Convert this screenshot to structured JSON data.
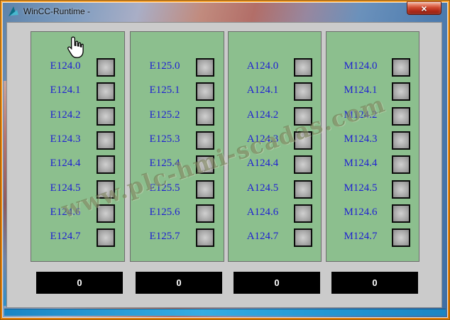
{
  "window": {
    "title": "WinCC-Runtime -",
    "close_icon": "×"
  },
  "watermark": {
    "text": "www.plc-hmi-scadas.com"
  },
  "panels": [
    {
      "name": "E124",
      "labels": [
        "E124.0",
        "E124.1",
        "E124.2",
        "E124.3",
        "E124.4",
        "E124.5",
        "E124.6",
        "E124.7"
      ],
      "counter": "0"
    },
    {
      "name": "E125",
      "labels": [
        "E125.0",
        "E125.1",
        "E125.2",
        "E125.3",
        "E125.4",
        "E125.5",
        "E125.6",
        "E125.7"
      ],
      "counter": "0"
    },
    {
      "name": "A124",
      "labels": [
        "A124.0",
        "A124.1",
        "A124.2",
        "A124.3",
        "A124.4",
        "A124.5",
        "A124.6",
        "A124.7"
      ],
      "counter": "0"
    },
    {
      "name": "M124",
      "labels": [
        "M124.0",
        "M124.1",
        "M124.2",
        "M124.3",
        "M124.4",
        "M124.5",
        "M124.6",
        "M124.7"
      ],
      "counter": "0"
    }
  ],
  "colors": {
    "panel_green": "#8cbf8e",
    "label_blue": "#1f1fd3",
    "client_gray": "#cbcbcb",
    "frame_orange": "#ef8c14",
    "display_bg": "#000000",
    "display_text": "#ffffff",
    "close_red": "#cf4a30"
  }
}
